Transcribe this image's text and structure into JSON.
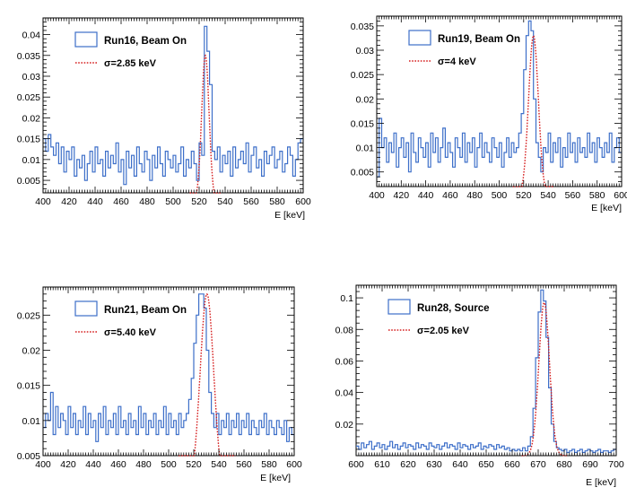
{
  "chart_data": [
    {
      "type": "histogram",
      "panel": "top-left",
      "xlim": [
        400,
        600
      ],
      "ylim": [
        0.002,
        0.044
      ],
      "xticks": [
        400,
        420,
        440,
        460,
        480,
        500,
        520,
        540,
        560,
        580,
        600
      ],
      "yticks": [
        0.005,
        0.01,
        0.015,
        0.02,
        0.025,
        0.03,
        0.035,
        0.04
      ],
      "ytick_labels": [
        "0.005",
        "0.01",
        "0.015",
        "0.02",
        "0.025",
        "0.03",
        "0.035",
        "0.04"
      ],
      "xlabel": "E [keV]",
      "bin_width": 2,
      "legend": {
        "position": "top-left",
        "hist_label": "Run16, Beam On",
        "fit_label": "σ=2.85 keV"
      },
      "hist_color": "#3d6fc9",
      "fit_color": "#d62020",
      "values": [
        0.015,
        0.012,
        0.016,
        0.013,
        0.011,
        0.014,
        0.009,
        0.013,
        0.007,
        0.012,
        0.01,
        0.013,
        0.006,
        0.01,
        0.008,
        0.011,
        0.005,
        0.009,
        0.012,
        0.007,
        0.013,
        0.009,
        0.01,
        0.006,
        0.012,
        0.008,
        0.011,
        0.009,
        0.014,
        0.007,
        0.01,
        0.004,
        0.012,
        0.008,
        0.011,
        0.006,
        0.013,
        0.009,
        0.007,
        0.012,
        0.01,
        0.005,
        0.011,
        0.008,
        0.013,
        0.009,
        0.006,
        0.012,
        0.01,
        0.008,
        0.011,
        0.007,
        0.009,
        0.013,
        0.006,
        0.01,
        0.008,
        0.012,
        0.009,
        0.005,
        0.014,
        0.011,
        0.042,
        0.036,
        0.028,
        0.012,
        0.01,
        0.013,
        0.007,
        0.011,
        0.009,
        0.012,
        0.006,
        0.013,
        0.008,
        0.01,
        0.012,
        0.009,
        0.014,
        0.007,
        0.011,
        0.013,
        0.008,
        0.01,
        0.006,
        0.012,
        0.009,
        0.011,
        0.013,
        0.008,
        0.01,
        0.012,
        0.007,
        0.009,
        0.013,
        0.011,
        0.006,
        0.01,
        0.014,
        0.015
      ],
      "fit": {
        "mu": 524.8,
        "sigma": 2.85,
        "amp": 0.035
      }
    },
    {
      "type": "histogram",
      "panel": "top-right",
      "xlim": [
        400,
        600
      ],
      "ylim": [
        0.002,
        0.037
      ],
      "xticks": [
        400,
        420,
        440,
        460,
        480,
        500,
        520,
        540,
        560,
        580,
        600
      ],
      "yticks": [
        0.005,
        0.01,
        0.015,
        0.02,
        0.025,
        0.03,
        0.035
      ],
      "ytick_labels": [
        "0.005",
        "0.01",
        "0.015",
        "0.02",
        "0.025",
        "0.03",
        "0.035"
      ],
      "xlabel": "E [keV]",
      "bin_width": 2,
      "legend": {
        "position": "top-left",
        "hist_label": "Run19, Beam On",
        "fit_label": "σ=4 keV"
      },
      "hist_color": "#3d6fc9",
      "fit_color": "#d62020",
      "values": [
        0.004,
        0.016,
        0.01,
        0.012,
        0.007,
        0.011,
        0.009,
        0.013,
        0.006,
        0.01,
        0.012,
        0.008,
        0.011,
        0.005,
        0.013,
        0.009,
        0.007,
        0.012,
        0.01,
        0.008,
        0.011,
        0.006,
        0.013,
        0.009,
        0.012,
        0.007,
        0.01,
        0.014,
        0.008,
        0.011,
        0.009,
        0.006,
        0.012,
        0.01,
        0.008,
        0.013,
        0.007,
        0.011,
        0.009,
        0.012,
        0.006,
        0.01,
        0.013,
        0.008,
        0.011,
        0.009,
        0.007,
        0.012,
        0.01,
        0.008,
        0.011,
        0.006,
        0.009,
        0.012,
        0.008,
        0.011,
        0.009,
        0.01,
        0.013,
        0.017,
        0.026,
        0.033,
        0.036,
        0.034,
        0.02,
        0.011,
        0.008,
        0.005,
        0.01,
        0.009,
        0.013,
        0.007,
        0.011,
        0.009,
        0.012,
        0.006,
        0.01,
        0.008,
        0.013,
        0.009,
        0.011,
        0.007,
        0.012,
        0.009,
        0.01,
        0.008,
        0.013,
        0.009,
        0.011,
        0.007,
        0.012,
        0.01,
        0.008,
        0.011,
        0.009,
        0.013,
        0.007,
        0.01,
        0.012,
        0.009
      ],
      "fit": {
        "mu": 528,
        "sigma": 4,
        "amp": 0.033
      }
    },
    {
      "type": "histogram",
      "panel": "bottom-left",
      "xlim": [
        400,
        600
      ],
      "ylim": [
        0.005,
        0.029
      ],
      "xticks": [
        400,
        420,
        440,
        460,
        480,
        500,
        520,
        540,
        560,
        580,
        600
      ],
      "yticks": [
        0.005,
        0.01,
        0.015,
        0.02,
        0.025
      ],
      "ytick_labels": [
        "0.005",
        "0.01",
        "0.015",
        "0.02",
        "0.025"
      ],
      "xlabel": "E [keV]",
      "bin_width": 2,
      "legend": {
        "position": "top-left",
        "hist_label": "Run21, Beam On",
        "fit_label": "σ=5.40 keV"
      },
      "hist_color": "#3d6fc9",
      "fit_color": "#d62020",
      "values": [
        0.009,
        0.011,
        0.01,
        0.014,
        0.008,
        0.012,
        0.009,
        0.011,
        0.01,
        0.008,
        0.012,
        0.009,
        0.011,
        0.008,
        0.01,
        0.009,
        0.012,
        0.008,
        0.011,
        0.009,
        0.01,
        0.007,
        0.011,
        0.009,
        0.012,
        0.008,
        0.01,
        0.009,
        0.011,
        0.008,
        0.012,
        0.009,
        0.01,
        0.008,
        0.011,
        0.009,
        0.01,
        0.008,
        0.012,
        0.009,
        0.011,
        0.008,
        0.01,
        0.009,
        0.011,
        0.008,
        0.01,
        0.009,
        0.012,
        0.008,
        0.011,
        0.009,
        0.01,
        0.008,
        0.011,
        0.009,
        0.01,
        0.011,
        0.013,
        0.016,
        0.021,
        0.025,
        0.028,
        0.028,
        0.026,
        0.02,
        0.014,
        0.011,
        0.009,
        0.011,
        0.008,
        0.01,
        0.009,
        0.011,
        0.008,
        0.01,
        0.009,
        0.011,
        0.008,
        0.01,
        0.009,
        0.011,
        0.008,
        0.01,
        0.009,
        0.008,
        0.01,
        0.009,
        0.011,
        0.008,
        0.01,
        0.009,
        0.008,
        0.01,
        0.009,
        0.008,
        0.01,
        0.007,
        0.009,
        0.008
      ],
      "fit": {
        "mu": 530.5,
        "sigma": 5.4,
        "amp": 0.028
      }
    },
    {
      "type": "histogram",
      "panel": "bottom-right",
      "xlim": [
        600,
        700
      ],
      "ylim": [
        0,
        0.108
      ],
      "xticks": [
        600,
        610,
        620,
        630,
        640,
        650,
        660,
        670,
        680,
        690,
        700
      ],
      "yticks": [
        0.02,
        0.04,
        0.06,
        0.08,
        0.1
      ],
      "ytick_labels": [
        "0.02",
        "0.04",
        "0.06",
        "0.08",
        "0.1"
      ],
      "xlabel": "E [keV]",
      "bin_width": 1,
      "legend": {
        "position": "top-left",
        "hist_label": "Run28, Source",
        "fit_label": "σ=2.05 keV"
      },
      "hist_color": "#3d6fc9",
      "fit_color": "#d62020",
      "values": [
        0.006,
        0.004,
        0.008,
        0.005,
        0.007,
        0.009,
        0.004,
        0.006,
        0.008,
        0.005,
        0.007,
        0.004,
        0.006,
        0.009,
        0.005,
        0.007,
        0.004,
        0.006,
        0.008,
        0.005,
        0.007,
        0.006,
        0.004,
        0.008,
        0.005,
        0.007,
        0.006,
        0.004,
        0.008,
        0.006,
        0.005,
        0.007,
        0.004,
        0.006,
        0.008,
        0.005,
        0.007,
        0.006,
        0.004,
        0.008,
        0.005,
        0.007,
        0.006,
        0.004,
        0.007,
        0.005,
        0.006,
        0.008,
        0.004,
        0.006,
        0.005,
        0.007,
        0.006,
        0.004,
        0.007,
        0.005,
        0.006,
        0.004,
        0.005,
        0.003,
        0.004,
        0.003,
        0.004,
        0.003,
        0.005,
        0.003,
        0.006,
        0.012,
        0.03,
        0.062,
        0.091,
        0.105,
        0.098,
        0.075,
        0.043,
        0.02,
        0.009,
        0.005,
        0.004,
        0.003,
        0.004,
        0.002,
        0.003,
        0.004,
        0.002,
        0.003,
        0.004,
        0.002,
        0.003,
        0.004,
        0.003,
        0.002,
        0.003,
        0.004,
        0.002,
        0.003,
        0.003,
        0.002,
        0.003,
        0.004
      ],
      "fit": {
        "mu": 672.3,
        "sigma": 2.05,
        "amp": 0.097
      }
    }
  ]
}
